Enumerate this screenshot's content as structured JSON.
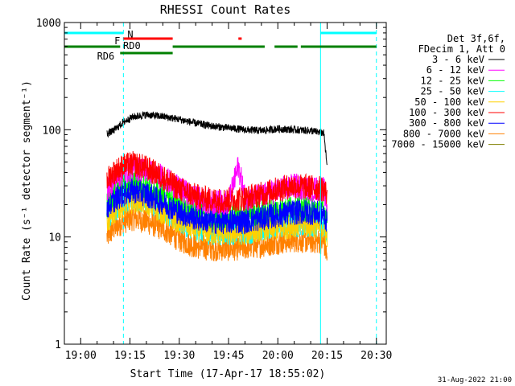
{
  "chart_data": {
    "type": "line",
    "title": "RHESSI Count Rates",
    "xlabel": "Start Time (17-Apr-17 18:55:02)",
    "ylabel": "Count Rate (s⁻¹ detector segment⁻¹)",
    "yscale": "log",
    "ylim": [
      1,
      1000
    ],
    "xlim": [
      "18:55:02",
      "20:33:00"
    ],
    "x_ticks": [
      "19:00",
      "19:15",
      "19:30",
      "19:45",
      "20:00",
      "20:15",
      "20:30"
    ],
    "y_ticks": [
      "1",
      "10",
      "100",
      "1000"
    ],
    "legend": {
      "position": "top-right",
      "header": [
        "Det 3f,6f,",
        "FDecim 1, Att 0"
      ]
    },
    "series": [
      {
        "name": "3 - 6 keV",
        "color": "#000000",
        "x": [
          "19:08",
          "19:10",
          "19:13",
          "19:16",
          "19:20",
          "19:25",
          "19:30",
          "19:35",
          "19:40",
          "19:45",
          "19:50",
          "19:55",
          "20:00",
          "20:05",
          "20:10",
          "20:14",
          "20:15"
        ],
        "values": [
          92,
          98,
          118,
          132,
          138,
          133,
          125,
          115,
          108,
          104,
          100,
          98,
          102,
          100,
          98,
          93,
          45
        ]
      },
      {
        "name": "6 - 12 keV",
        "color": "#ff00ff",
        "x": [
          "19:08",
          "19:10",
          "19:13",
          "19:16",
          "19:20",
          "19:25",
          "19:30",
          "19:35",
          "19:40",
          "19:45",
          "19:48",
          "19:50",
          "19:55",
          "20:00",
          "20:05",
          "20:10",
          "20:14",
          "20:15"
        ],
        "values": [
          28,
          34,
          40,
          44,
          42,
          36,
          28,
          23,
          21,
          21,
          46,
          23,
          24,
          27,
          30,
          28,
          28,
          20
        ]
      },
      {
        "name": "12 - 25 keV",
        "color": "#00ff00",
        "x": [
          "19:08",
          "19:10",
          "19:13",
          "19:16",
          "19:20",
          "19:25",
          "19:30",
          "19:35",
          "19:40",
          "19:45",
          "19:50",
          "19:55",
          "20:00",
          "20:05",
          "20:10",
          "20:14",
          "20:15"
        ],
        "values": [
          20,
          26,
          30,
          32,
          30,
          25,
          20,
          17,
          15,
          15,
          16,
          17,
          18,
          19,
          18,
          18,
          15
        ]
      },
      {
        "name": "25 - 50 keV",
        "color": "#00ffff",
        "x": [
          "19:08",
          "19:10",
          "19:13",
          "19:16",
          "19:20",
          "19:25",
          "19:30",
          "19:35",
          "19:40",
          "19:45",
          "19:50",
          "19:55",
          "20:00",
          "20:05",
          "20:10",
          "20:14",
          "20:15"
        ],
        "values": [
          15,
          18,
          21,
          23,
          22,
          18,
          14,
          12,
          11,
          11,
          11,
          12,
          13,
          13,
          13,
          13,
          11
        ]
      },
      {
        "name": "50 - 100 keV",
        "color": "#ffd000",
        "x": [
          "19:08",
          "19:10",
          "19:13",
          "19:16",
          "19:20",
          "19:25",
          "19:30",
          "19:35",
          "19:40",
          "19:45",
          "19:50",
          "19:55",
          "20:00",
          "20:05",
          "20:10",
          "20:14",
          "20:15"
        ],
        "values": [
          14,
          17,
          20,
          22,
          21,
          17,
          14,
          12,
          11,
          11,
          11,
          12,
          12,
          13,
          13,
          12,
          10
        ]
      },
      {
        "name": "100 - 300 keV",
        "color": "#ff0000",
        "x": [
          "19:08",
          "19:10",
          "19:13",
          "19:16",
          "19:20",
          "19:25",
          "19:30",
          "19:35",
          "19:40",
          "19:45",
          "19:50",
          "19:55",
          "20:00",
          "20:05",
          "20:10",
          "20:14",
          "20:15"
        ],
        "values": [
          34,
          40,
          46,
          48,
          44,
          36,
          28,
          24,
          22,
          22,
          23,
          25,
          28,
          30,
          29,
          28,
          25
        ]
      },
      {
        "name": "300 - 800 keV",
        "color": "#0000ff",
        "x": [
          "19:08",
          "19:10",
          "19:13",
          "19:16",
          "19:20",
          "19:25",
          "19:30",
          "19:35",
          "19:40",
          "19:45",
          "19:50",
          "19:55",
          "20:00",
          "20:05",
          "20:10",
          "20:14",
          "20:15"
        ],
        "values": [
          19,
          22,
          25,
          27,
          25,
          21,
          17,
          15,
          14,
          14,
          14,
          15,
          16,
          17,
          17,
          16,
          14
        ]
      },
      {
        "name": "800 - 7000 keV",
        "color": "#ff8000",
        "x": [
          "19:08",
          "19:10",
          "19:13",
          "19:16",
          "19:20",
          "19:25",
          "19:30",
          "19:35",
          "19:40",
          "19:45",
          "19:50",
          "19:55",
          "20:00",
          "20:05",
          "20:10",
          "20:14",
          "20:15"
        ],
        "values": [
          10,
          12,
          14,
          15,
          14,
          12,
          9.5,
          8.2,
          7.8,
          7.8,
          8.0,
          8.4,
          9.0,
          9.4,
          9.2,
          9.0,
          6.5
        ]
      },
      {
        "name": "7000 - 15000 keV",
        "color": "#808000",
        "x": [],
        "values": []
      }
    ],
    "annotations": {
      "bars": [
        {
          "label": "N",
          "color": "#00ffff",
          "label_color": "#00ffff",
          "segments": [
            [
              "18:55:02",
              "19:13"
            ],
            [
              "20:13",
              "20:30"
            ]
          ]
        },
        {
          "label": "F",
          "color": "#ff0000",
          "label_color": "#ff0000",
          "segments": [
            [
              "19:13",
              "19:28"
            ],
            [
              "19:48",
              "19:49"
            ]
          ]
        },
        {
          "label": "RD0",
          "color": "#008000",
          "label_color": "#008000",
          "segments": [
            [
              "18:55:02",
              "19:12"
            ],
            [
              "19:28",
              "19:56"
            ],
            [
              "19:59",
              "20:06"
            ],
            [
              "20:07",
              "20:30"
            ]
          ]
        },
        {
          "label": "RD6",
          "color": "#008000",
          "label_color": "#008000",
          "segments": [
            [
              "19:12",
              "19:28"
            ]
          ]
        }
      ],
      "vlines_solid": [
        "18:55:02",
        "20:13"
      ],
      "vlines_dashed": [
        "19:13",
        "20:30"
      ],
      "vline_color": "#00ffff"
    },
    "footer_date": "31-Aug-2022 21:00"
  }
}
